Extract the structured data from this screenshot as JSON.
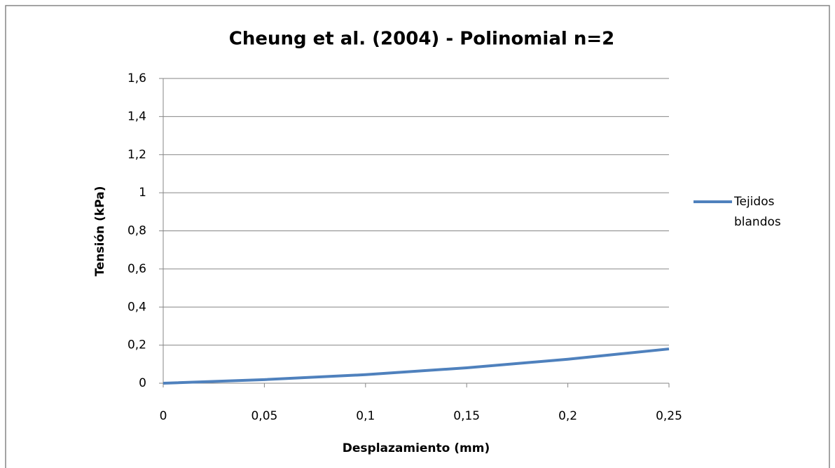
{
  "chart_data": {
    "type": "line",
    "title": "Cheung et al. (2004) - Polinomial n=2",
    "x_label": "Desplazamiento (mm)",
    "y_label": "Tensión (kPa)",
    "x": [
      0,
      0.05,
      0.1,
      0.15,
      0.2,
      0.25
    ],
    "series": [
      {
        "name": "Tejidos blandos",
        "color": "#4f81bd",
        "values": [
          0,
          0.019,
          0.045,
          0.081,
          0.126,
          0.18
        ]
      }
    ],
    "xlim": [
      0,
      0.25
    ],
    "xticks": [
      0,
      {
        "value": 0.05,
        "label": "0,05"
      },
      {
        "value": 0.1,
        "label": "0,1"
      },
      {
        "value": 0.15,
        "label": "0,15"
      },
      {
        "value": 0.2,
        "label": "0,2"
      },
      {
        "value": 0.25,
        "label": "0,25"
      }
    ],
    "ylim": [
      0,
      1.6
    ],
    "yticks": [
      0,
      {
        "value": 0.2,
        "label": "0,2"
      },
      {
        "value": 0.4,
        "label": "0,4"
      },
      {
        "value": 0.6,
        "label": "0,6"
      },
      {
        "value": 0.8,
        "label": "0,8"
      },
      1,
      {
        "value": 1.2,
        "label": "1,2"
      },
      {
        "value": 1.4,
        "label": "1,4"
      },
      {
        "value": 1.6,
        "label": "1,6"
      }
    ],
    "grid": true,
    "legend": "right"
  }
}
